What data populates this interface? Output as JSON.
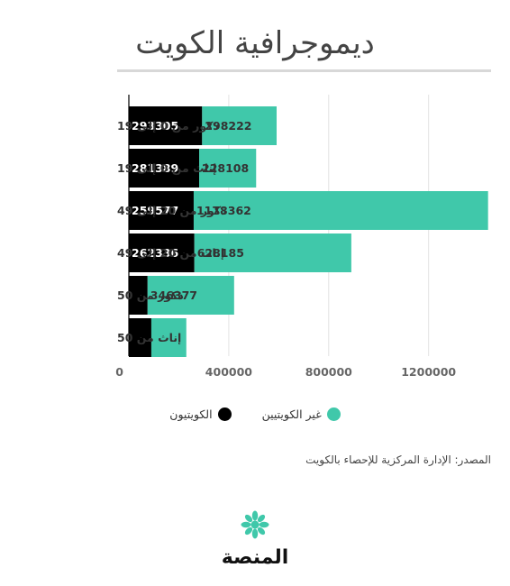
{
  "title": "ديموجرافية الكويت",
  "chart_data": {
    "type": "bar",
    "orientation": "horizontal",
    "stacked": true,
    "categories": [
      "ذكور من 0 إلى 19",
      "إناث من 0 إلى 19",
      "ذكور من 20 إلى 49",
      "إناث من 20 إلى 49",
      "ذكور من 50",
      "إناث من 50"
    ],
    "series": [
      {
        "name": "الكويتيون",
        "color": "#000000",
        "values": [
          293305,
          281389,
          259577,
          262336,
          75000,
          90000
        ],
        "labels": [
          "293305",
          "281389",
          "259577",
          "262336",
          "",
          ""
        ]
      },
      {
        "name": "غير الكويتيين",
        "color": "#40c8aa",
        "values": [
          298222,
          228108,
          1178362,
          628185,
          346377,
          140000
        ],
        "labels": [
          "298222",
          "228108",
          "1178362",
          "628185",
          "346377",
          ""
        ]
      }
    ],
    "xlim": [
      0,
      1450000
    ],
    "xticks": [
      0,
      400000,
      800000,
      1200000
    ],
    "xtick_labels": [
      "0",
      "400000",
      "800000",
      "1200000"
    ],
    "grid": true,
    "legend_position": "bottom"
  },
  "legend": {
    "kuwaiti": "الكويتيون",
    "non_kuwaiti": "غير الكويتيين"
  },
  "source": "المصدر: الإدارة المركزية للإحصاء بالكويت",
  "logo_text": "المنصة"
}
